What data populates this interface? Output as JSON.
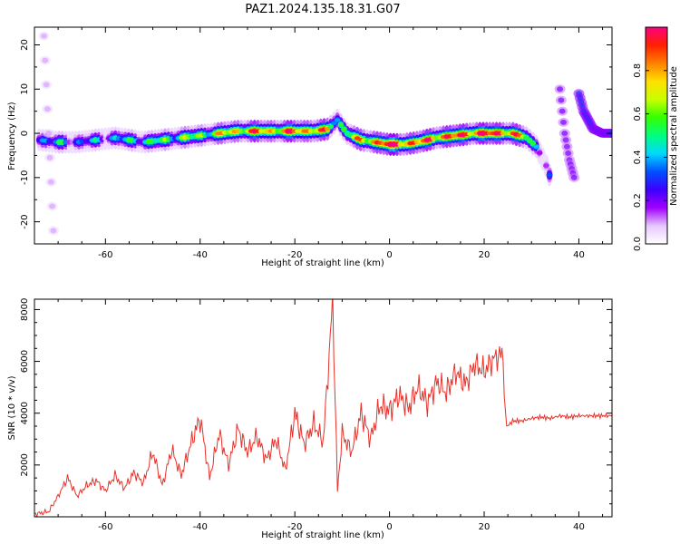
{
  "chart_data": [
    {
      "type": "heatmap",
      "title": "PAZ1.2024.135.18.31.G07",
      "xlabel": "Height of straight line (km)",
      "ylabel": "Frequency (Hz)",
      "xlim": [
        -75,
        47
      ],
      "ylim": [
        -25,
        24
      ],
      "xticks": [
        -60,
        -40,
        -20,
        0,
        20,
        40
      ],
      "yticks": [
        -20,
        -10,
        0,
        10,
        20
      ],
      "colorbar": {
        "label": "Normalized spectral amplitude",
        "range": [
          0,
          1
        ],
        "ticks": [
          0.0,
          0.2,
          0.4,
          0.6,
          0.8
        ],
        "colormap": [
          "#ffffff",
          "#e6c8ff",
          "#a000ff",
          "#3c00ff",
          "#0050ff",
          "#00d8ff",
          "#00ff80",
          "#33ff00",
          "#c8ff00",
          "#ffe000",
          "#ff8000",
          "#ff2000",
          "#ff0080"
        ]
      },
      "ridge": {
        "x": [
          -74,
          -70,
          -66,
          -62,
          -58,
          -55,
          -52,
          -48,
          -44,
          -40,
          -36,
          -32,
          -28,
          -24,
          -20,
          -16,
          -13,
          -11,
          -9,
          -6,
          -3,
          0,
          3,
          6,
          10,
          14,
          18,
          22,
          26,
          29,
          31,
          33,
          34
        ],
        "freq": [
          -1.5,
          -2,
          -2,
          -1.5,
          -1,
          -1.5,
          -2,
          -1.5,
          -1,
          -0.5,
          0,
          0.5,
          0.5,
          0.5,
          0.5,
          0.5,
          1,
          3,
          0,
          -1.5,
          -2,
          -2.5,
          -2.5,
          -2,
          -1,
          -0.5,
          0,
          0,
          0,
          -1,
          -3,
          -7,
          -10
        ],
        "amplitude": [
          0.35,
          0.35,
          0.3,
          0.3,
          0.35,
          0.4,
          0.45,
          0.5,
          0.55,
          0.55,
          0.65,
          0.75,
          0.8,
          0.75,
          0.85,
          0.8,
          0.7,
          0.45,
          0.6,
          0.7,
          0.85,
          0.95,
          0.9,
          0.8,
          0.85,
          0.85,
          0.9,
          0.9,
          0.85,
          0.6,
          0.4,
          0.2,
          0.15
        ]
      },
      "secondary_features": [
        {
          "x": [
            36,
            37,
            38,
            39
          ],
          "freq": [
            10,
            0,
            -6,
            -10
          ],
          "amplitude": 0.2
        },
        {
          "x": [
            40,
            41,
            43,
            45,
            47
          ],
          "freq": [
            9,
            5,
            1,
            0,
            0
          ],
          "amplitude": 0.3
        },
        {
          "x": [
            -73,
            -72,
            -71
          ],
          "freq": [
            22,
            0,
            -22
          ],
          "amplitude": 0.1
        }
      ]
    },
    {
      "type": "line",
      "xlabel": "Height of straight line (km)",
      "ylabel": "SNR (10 * v/v)",
      "xlim": [
        -75,
        47
      ],
      "ylim": [
        0,
        8400
      ],
      "xticks": [
        -60,
        -40,
        -20,
        0,
        20,
        40
      ],
      "yticks": [
        2000,
        4000,
        6000,
        8000
      ],
      "color": "#e8312a",
      "series": [
        {
          "x": [
            -75,
            -72,
            -70,
            -68,
            -66,
            -64,
            -62,
            -60,
            -58,
            -56,
            -54,
            -52,
            -50,
            -48,
            -46,
            -44,
            -42,
            -40,
            -38,
            -36,
            -34,
            -32,
            -30,
            -28,
            -26,
            -24,
            -22,
            -20,
            -18,
            -16,
            -14,
            -13,
            -12,
            -11,
            -10,
            -8,
            -6,
            -4,
            -2,
            0,
            2,
            4,
            6,
            8,
            10,
            12,
            14,
            16,
            18,
            20,
            22,
            24,
            24.5,
            25,
            26,
            28,
            30,
            32,
            34,
            36,
            38,
            40,
            42,
            44,
            47
          ],
          "y": [
            100,
            200,
            800,
            1500,
            800,
            1200,
            1400,
            1000,
            1600,
            1100,
            1700,
            1300,
            2500,
            1200,
            2600,
            1600,
            2800,
            3800,
            1500,
            3200,
            2000,
            3400,
            2500,
            3100,
            2200,
            3000,
            1800,
            4000,
            2800,
            3600,
            2900,
            5500,
            8400,
            1000,
            3200,
            2500,
            4000,
            3000,
            4300,
            4100,
            4700,
            4200,
            5000,
            4400,
            5200,
            4800,
            5600,
            5100,
            5900,
            5600,
            6100,
            6300,
            3600,
            3500,
            3700,
            3700,
            3800,
            3850,
            3800,
            3900,
            3850,
            3900,
            3900,
            3900,
            3900
          ]
        }
      ]
    }
  ]
}
